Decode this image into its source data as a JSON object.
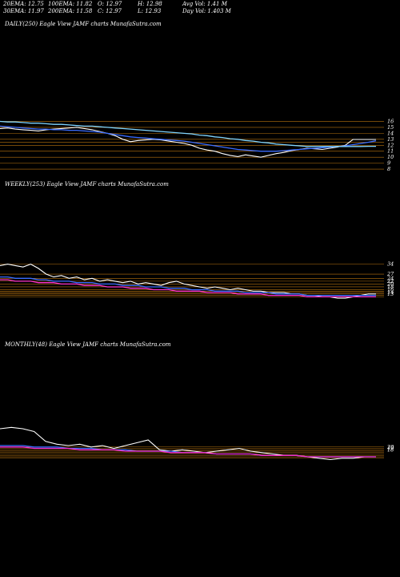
{
  "header": {
    "row1": [
      "20EMA: 12.75",
      "100EMA: 11.82",
      "O: 12.97",
      "H: 12.98",
      "Avg Vol: 1.41 M"
    ],
    "row2": [
      "30EMA: 11.97",
      "200EMA: 11.58",
      "C: 12.97",
      "L: 12.93",
      "Day Vol: 1.403 M"
    ]
  },
  "panels": [
    {
      "label": "DAILY(250) Eagle   View  JAMF charts MunafaSutra.com"
    },
    {
      "label": "WEEKLY(253) Eagle   View  JAMF charts MunafaSutra.com"
    },
    {
      "label": "MONTHLY(48) Eagle   View  JAMF charts MunafaSutra.com"
    }
  ],
  "colors": {
    "price": "#ffffff",
    "ema_blue": "#3a6cff",
    "ema_cyan": "#7fd4ff",
    "ema_magenta": "#ff33cc",
    "level_lines": "#b8730f"
  },
  "chart_data": [
    {
      "type": "line",
      "title": "DAILY(250)",
      "ylim": [
        6,
        17
      ],
      "yticks": [
        16,
        15,
        14,
        13,
        12,
        11,
        10,
        9,
        8
      ],
      "levels": [
        16,
        15,
        14,
        13,
        12.5,
        12,
        11,
        10,
        9,
        8
      ],
      "series": [
        {
          "role": "price",
          "values": [
            14.8,
            14.9,
            14.7,
            14.6,
            14.5,
            14.4,
            14.6,
            14.7,
            14.8,
            14.9,
            15.0,
            14.8,
            14.6,
            14.3,
            14.0,
            13.6,
            13.0,
            12.6,
            12.8,
            12.9,
            13.0,
            12.9,
            12.7,
            12.5,
            12.3,
            12.0,
            11.5,
            11.2,
            11.0,
            10.6,
            10.3,
            10.1,
            10.4,
            10.2,
            10.0,
            10.3,
            10.6,
            10.8,
            11.1,
            11.3,
            11.5,
            11.4,
            11.3,
            11.5,
            11.7,
            12.0,
            12.97,
            12.97,
            12.97,
            12.97
          ]
        },
        {
          "role": "ema",
          "values": [
            15.2,
            15.1,
            15.0,
            14.9,
            14.8,
            14.7,
            14.7,
            14.6,
            14.6,
            14.5,
            14.5,
            14.4,
            14.3,
            14.2,
            14.0,
            13.8,
            13.6,
            13.4,
            13.3,
            13.2,
            13.1,
            13.0,
            12.9,
            12.8,
            12.7,
            12.5,
            12.3,
            12.1,
            11.9,
            11.7,
            11.5,
            11.3,
            11.2,
            11.1,
            11.0,
            11.0,
            11.0,
            11.1,
            11.2,
            11.3,
            11.4,
            11.5,
            11.6,
            11.7,
            11.8,
            11.9,
            12.1,
            12.3,
            12.5,
            12.75
          ]
        },
        {
          "role": "ema",
          "values": [
            16.0,
            15.9,
            15.9,
            15.8,
            15.7,
            15.7,
            15.6,
            15.5,
            15.5,
            15.4,
            15.3,
            15.2,
            15.2,
            15.1,
            15.0,
            14.9,
            14.8,
            14.7,
            14.6,
            14.5,
            14.4,
            14.3,
            14.2,
            14.1,
            14.0,
            13.9,
            13.7,
            13.6,
            13.4,
            13.3,
            13.1,
            13.0,
            12.8,
            12.7,
            12.5,
            12.4,
            12.2,
            12.1,
            12.0,
            11.9,
            11.8,
            11.8,
            11.8,
            11.8,
            11.8,
            11.8,
            11.8,
            11.8,
            11.82,
            11.82
          ]
        }
      ]
    },
    {
      "type": "line",
      "title": "WEEKLY(253)",
      "ylim": [
        5,
        40
      ],
      "yticks": [
        34,
        27,
        24,
        22,
        20,
        18,
        16,
        14,
        13
      ],
      "levels": [
        34,
        27,
        24,
        22,
        20,
        18,
        16,
        15,
        14,
        13,
        12,
        11
      ],
      "series": [
        {
          "role": "price",
          "values": [
            33,
            34,
            33,
            32,
            34,
            31,
            27,
            25,
            26,
            24,
            25,
            23,
            24,
            22,
            23,
            22,
            21,
            22,
            20,
            21,
            20,
            19,
            21,
            22,
            20,
            19,
            18,
            17,
            18,
            17,
            16,
            17,
            16,
            15,
            15,
            14,
            14,
            14,
            13,
            13,
            12,
            12,
            11,
            11,
            10,
            10,
            11,
            12,
            13,
            13
          ]
        },
        {
          "role": "ema",
          "values": [
            25,
            25,
            24,
            24,
            24,
            23,
            23,
            22,
            22,
            22,
            21,
            21,
            21,
            20,
            20,
            20,
            19,
            19,
            19,
            18,
            18,
            18,
            17,
            17,
            17,
            16,
            16,
            16,
            15,
            15,
            15,
            15,
            14,
            14,
            14,
            14,
            13,
            13,
            13,
            13,
            12,
            12,
            12,
            12,
            12,
            12,
            12,
            12,
            12,
            12
          ]
        },
        {
          "role": "ema",
          "values": [
            23,
            23,
            22,
            22,
            22,
            21,
            21,
            21,
            20,
            20,
            20,
            19,
            19,
            19,
            18,
            18,
            18,
            17,
            17,
            17,
            16,
            16,
            16,
            15,
            15,
            15,
            15,
            14,
            14,
            14,
            14,
            13,
            13,
            13,
            13,
            12,
            12,
            12,
            12,
            12,
            11,
            11,
            11,
            11,
            11,
            11,
            11,
            11,
            11,
            11
          ]
        }
      ]
    },
    {
      "type": "line",
      "title": "MONTHLY(48)",
      "ylim": [
        5,
        45
      ],
      "yticks": [
        20,
        18,
        19
      ],
      "levels": [
        20,
        19,
        18,
        17,
        16,
        15,
        14,
        13,
        12
      ],
      "series": [
        {
          "role": "price",
          "values": [
            33,
            34,
            33,
            31,
            24,
            22,
            21,
            22,
            20,
            21,
            19,
            21,
            23,
            25,
            18,
            17,
            18,
            17,
            16,
            17,
            18,
            19,
            17,
            16,
            15,
            14,
            14,
            13,
            12,
            11,
            12,
            12,
            13,
            13
          ]
        },
        {
          "role": "ema",
          "values": [
            21,
            21,
            21,
            20,
            20,
            20,
            19,
            19,
            19,
            18,
            18,
            18,
            17,
            17,
            17,
            17,
            16,
            16,
            16,
            15,
            15,
            15,
            15,
            14,
            14,
            14,
            14,
            13,
            13,
            13,
            13,
            13,
            13,
            13
          ]
        },
        {
          "role": "ema",
          "values": [
            20,
            20,
            20,
            19,
            19,
            19,
            19,
            18,
            18,
            18,
            18,
            17,
            17,
            17,
            17,
            16,
            16,
            16,
            16,
            15,
            15,
            15,
            15,
            14,
            14,
            14,
            14,
            13,
            13,
            13,
            13,
            13,
            13,
            13
          ]
        }
      ]
    }
  ]
}
